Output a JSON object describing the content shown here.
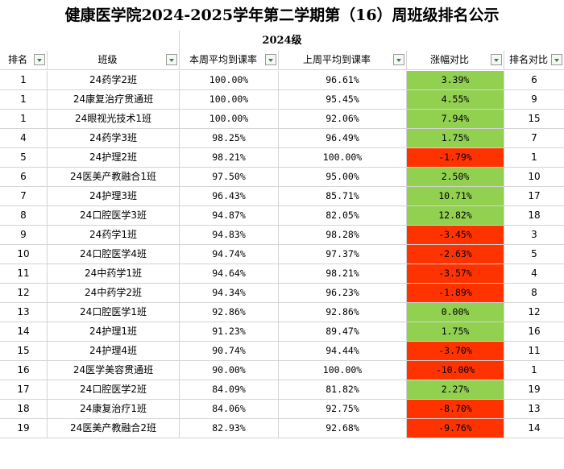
{
  "title": "健康医学院2024-2025学年第二学期第（16）周班级排名公示",
  "group_label": "2024级",
  "headers": [
    "排名",
    "班级",
    "本周平均到课率",
    "上周平均到课率",
    "涨幅对比",
    "排名对比"
  ],
  "colors": {
    "increase": "#92d050",
    "decrease": "#ff3300"
  },
  "rows": [
    {
      "rank": "1",
      "class": "24药学2班",
      "this_week": "100.00%",
      "last_week": "96.61%",
      "change": "3.39%",
      "trend": "up",
      "rank_compare": "6"
    },
    {
      "rank": "1",
      "class": "24康复治疗贯通班",
      "this_week": "100.00%",
      "last_week": "95.45%",
      "change": "4.55%",
      "trend": "up",
      "rank_compare": "9"
    },
    {
      "rank": "1",
      "class": "24眼视光技术1班",
      "this_week": "100.00%",
      "last_week": "92.06%",
      "change": "7.94%",
      "trend": "up",
      "rank_compare": "15"
    },
    {
      "rank": "4",
      "class": "24药学3班",
      "this_week": "98.25%",
      "last_week": "96.49%",
      "change": "1.75%",
      "trend": "up",
      "rank_compare": "7"
    },
    {
      "rank": "5",
      "class": "24护理2班",
      "this_week": "98.21%",
      "last_week": "100.00%",
      "change": "-1.79%",
      "trend": "down",
      "rank_compare": "1"
    },
    {
      "rank": "6",
      "class": "24医美产教融合1班",
      "this_week": "97.50%",
      "last_week": "95.00%",
      "change": "2.50%",
      "trend": "up",
      "rank_compare": "10"
    },
    {
      "rank": "7",
      "class": "24护理3班",
      "this_week": "96.43%",
      "last_week": "85.71%",
      "change": "10.71%",
      "trend": "up",
      "rank_compare": "17"
    },
    {
      "rank": "8",
      "class": "24口腔医学3班",
      "this_week": "94.87%",
      "last_week": "82.05%",
      "change": "12.82%",
      "trend": "up",
      "rank_compare": "18"
    },
    {
      "rank": "9",
      "class": "24药学1班",
      "this_week": "94.83%",
      "last_week": "98.28%",
      "change": "-3.45%",
      "trend": "down",
      "rank_compare": "3"
    },
    {
      "rank": "10",
      "class": "24口腔医学4班",
      "this_week": "94.74%",
      "last_week": "97.37%",
      "change": "-2.63%",
      "trend": "down",
      "rank_compare": "5"
    },
    {
      "rank": "11",
      "class": "24中药学1班",
      "this_week": "94.64%",
      "last_week": "98.21%",
      "change": "-3.57%",
      "trend": "down",
      "rank_compare": "4"
    },
    {
      "rank": "12",
      "class": "24中药学2班",
      "this_week": "94.34%",
      "last_week": "96.23%",
      "change": "-1.89%",
      "trend": "down",
      "rank_compare": "8"
    },
    {
      "rank": "13",
      "class": "24口腔医学1班",
      "this_week": "92.86%",
      "last_week": "92.86%",
      "change": "0.00%",
      "trend": "up",
      "rank_compare": "12"
    },
    {
      "rank": "14",
      "class": "24护理1班",
      "this_week": "91.23%",
      "last_week": "89.47%",
      "change": "1.75%",
      "trend": "up",
      "rank_compare": "16"
    },
    {
      "rank": "15",
      "class": "24护理4班",
      "this_week": "90.74%",
      "last_week": "94.44%",
      "change": "-3.70%",
      "trend": "down",
      "rank_compare": "11"
    },
    {
      "rank": "16",
      "class": "24医学美容贯通班",
      "this_week": "90.00%",
      "last_week": "100.00%",
      "change": "-10.00%",
      "trend": "down",
      "rank_compare": "1"
    },
    {
      "rank": "17",
      "class": "24口腔医学2班",
      "this_week": "84.09%",
      "last_week": "81.82%",
      "change": "2.27%",
      "trend": "up",
      "rank_compare": "19"
    },
    {
      "rank": "18",
      "class": "24康复治疗1班",
      "this_week": "84.06%",
      "last_week": "92.75%",
      "change": "-8.70%",
      "trend": "down",
      "rank_compare": "13"
    },
    {
      "rank": "19",
      "class": "24医美产教融合2班",
      "this_week": "82.93%",
      "last_week": "92.68%",
      "change": "-9.76%",
      "trend": "down",
      "rank_compare": "14"
    }
  ]
}
